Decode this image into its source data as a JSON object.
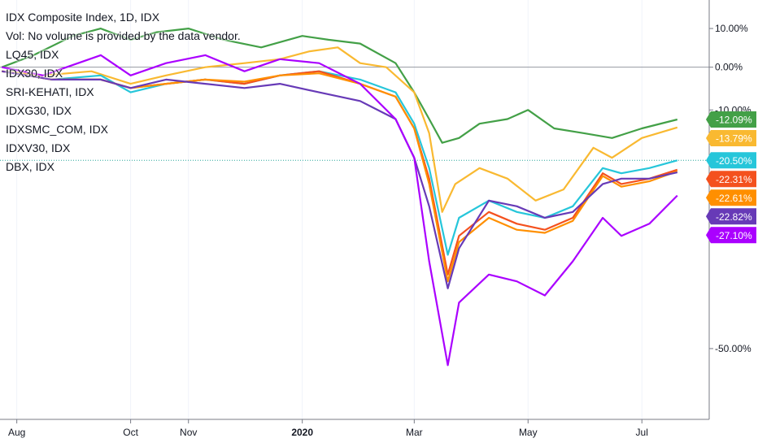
{
  "legend": {
    "title": "IDX Composite Index, 1D, IDX",
    "vol": "Vol: No volume is provided by the data vendor.",
    "items": [
      "LQ45, IDX",
      "IDX30, IDX",
      "SRI-KEHATI, IDX",
      "IDXG30, IDX",
      "IDXSMC_COM, IDX",
      "IDXV30, IDX",
      "DBX, IDX"
    ]
  },
  "chart_data": {
    "type": "line",
    "yscale": "log-percent",
    "ylim": [
      -58,
      18
    ],
    "y_ticks": [
      10,
      0,
      -10,
      -50
    ],
    "y_tick_labels": [
      "10.00%",
      "0.00%",
      "-10.00%",
      "-50.00%"
    ],
    "x_ticks": [
      "Aug",
      "Oct",
      "Nov",
      "2020",
      "Mar",
      "May",
      "Jul"
    ],
    "x_tick_dates": [
      "2019-08-01",
      "2019-10-01",
      "2019-11-01",
      "2020-01-01",
      "2020-03-01",
      "2020-05-01",
      "2020-07-01"
    ],
    "x_range": [
      "2019-07-23",
      "2020-07-24"
    ],
    "zero_line": true,
    "dotted_line_value": -20.5,
    "series": [
      {
        "color": "#43a047",
        "last": "-12.09%",
        "last_value": -12.09,
        "points": [
          [
            "2019-07-24",
            0
          ],
          [
            "2019-08-10",
            3
          ],
          [
            "2019-08-31",
            8
          ],
          [
            "2019-09-15",
            10
          ],
          [
            "2019-10-01",
            7
          ],
          [
            "2019-10-15",
            9
          ],
          [
            "2019-11-01",
            10
          ],
          [
            "2019-11-20",
            7
          ],
          [
            "2019-12-10",
            5
          ],
          [
            "2020-01-01",
            8
          ],
          [
            "2020-01-15",
            7
          ],
          [
            "2020-02-01",
            6
          ],
          [
            "2020-02-20",
            1
          ],
          [
            "2020-03-01",
            -6
          ],
          [
            "2020-03-09",
            -12
          ],
          [
            "2020-03-16",
            -17
          ],
          [
            "2020-03-25",
            -16
          ],
          [
            "2020-04-05",
            -13
          ],
          [
            "2020-04-20",
            -12
          ],
          [
            "2020-05-01",
            -10
          ],
          [
            "2020-05-15",
            -14
          ],
          [
            "2020-05-31",
            -15
          ],
          [
            "2020-06-15",
            -16
          ],
          [
            "2020-07-01",
            -14
          ],
          [
            "2020-07-20",
            -12.09
          ]
        ]
      },
      {
        "color": "#f9b931",
        "last": "-13.79%",
        "last_value": -13.79,
        "points": [
          [
            "2019-07-24",
            -1
          ],
          [
            "2019-08-15",
            -2
          ],
          [
            "2019-09-10",
            -1
          ],
          [
            "2019-10-01",
            -4
          ],
          [
            "2019-10-20",
            -2
          ],
          [
            "2019-11-10",
            0
          ],
          [
            "2019-12-01",
            1
          ],
          [
            "2019-12-20",
            2
          ],
          [
            "2020-01-05",
            4
          ],
          [
            "2020-01-20",
            5
          ],
          [
            "2020-02-01",
            1
          ],
          [
            "2020-02-15",
            0
          ],
          [
            "2020-03-01",
            -6
          ],
          [
            "2020-03-09",
            -15
          ],
          [
            "2020-03-16",
            -30
          ],
          [
            "2020-03-23",
            -25
          ],
          [
            "2020-04-05",
            -22
          ],
          [
            "2020-04-20",
            -24
          ],
          [
            "2020-05-05",
            -28
          ],
          [
            "2020-05-20",
            -26
          ],
          [
            "2020-06-05",
            -18
          ],
          [
            "2020-06-15",
            -20
          ],
          [
            "2020-07-01",
            -16
          ],
          [
            "2020-07-20",
            -13.79
          ]
        ]
      },
      {
        "color": "#26c6da",
        "last": "-20.50%",
        "last_value": -20.5,
        "points": [
          [
            "2019-07-24",
            -1
          ],
          [
            "2019-08-20",
            -3
          ],
          [
            "2019-09-15",
            -2
          ],
          [
            "2019-10-01",
            -6
          ],
          [
            "2019-10-20",
            -4
          ],
          [
            "2019-11-10",
            -3
          ],
          [
            "2019-12-01",
            -4
          ],
          [
            "2019-12-20",
            -2
          ],
          [
            "2020-01-10",
            -1
          ],
          [
            "2020-02-01",
            -3
          ],
          [
            "2020-02-20",
            -6
          ],
          [
            "2020-03-01",
            -13
          ],
          [
            "2020-03-09",
            -22
          ],
          [
            "2020-03-19",
            -37
          ],
          [
            "2020-03-25",
            -31
          ],
          [
            "2020-04-10",
            -28
          ],
          [
            "2020-04-25",
            -30
          ],
          [
            "2020-05-10",
            -31
          ],
          [
            "2020-05-25",
            -29
          ],
          [
            "2020-06-10",
            -22
          ],
          [
            "2020-06-20",
            -23
          ],
          [
            "2020-07-05",
            -22
          ],
          [
            "2020-07-20",
            -20.5
          ]
        ]
      },
      {
        "color": "#f4511e",
        "last": "-22.31%",
        "last_value": -22.31,
        "points": [
          [
            "2019-07-24",
            -1
          ],
          [
            "2019-08-20",
            -3
          ],
          [
            "2019-09-15",
            -3
          ],
          [
            "2019-10-01",
            -5
          ],
          [
            "2019-10-20",
            -4
          ],
          [
            "2019-11-10",
            -3
          ],
          [
            "2019-12-01",
            -4
          ],
          [
            "2019-12-20",
            -2
          ],
          [
            "2020-01-10",
            -1
          ],
          [
            "2020-02-01",
            -4
          ],
          [
            "2020-02-20",
            -7
          ],
          [
            "2020-03-01",
            -14
          ],
          [
            "2020-03-09",
            -24
          ],
          [
            "2020-03-19",
            -40
          ],
          [
            "2020-03-25",
            -34
          ],
          [
            "2020-04-10",
            -30
          ],
          [
            "2020-04-25",
            -32
          ],
          [
            "2020-05-10",
            -33
          ],
          [
            "2020-05-25",
            -31
          ],
          [
            "2020-06-10",
            -23
          ],
          [
            "2020-06-20",
            -25
          ],
          [
            "2020-07-05",
            -24
          ],
          [
            "2020-07-20",
            -22.31
          ]
        ]
      },
      {
        "color": "#ff8f00",
        "last": "-22.61%",
        "last_value": -22.61,
        "points": [
          [
            "2019-07-24",
            -1
          ],
          [
            "2019-08-20",
            -3
          ],
          [
            "2019-09-15",
            -3
          ],
          [
            "2019-10-01",
            -5
          ],
          [
            "2019-10-20",
            -4
          ],
          [
            "2019-11-10",
            -3
          ],
          [
            "2019-12-01",
            -3.5
          ],
          [
            "2019-12-20",
            -2
          ],
          [
            "2020-01-10",
            -1.5
          ],
          [
            "2020-02-01",
            -4
          ],
          [
            "2020-02-20",
            -7
          ],
          [
            "2020-03-01",
            -14
          ],
          [
            "2020-03-09",
            -25
          ],
          [
            "2020-03-19",
            -41
          ],
          [
            "2020-03-25",
            -35
          ],
          [
            "2020-04-10",
            -31
          ],
          [
            "2020-04-25",
            -33
          ],
          [
            "2020-05-10",
            -33.5
          ],
          [
            "2020-05-25",
            -31.5
          ],
          [
            "2020-06-10",
            -23.5
          ],
          [
            "2020-06-20",
            -25.5
          ],
          [
            "2020-07-05",
            -24.5
          ],
          [
            "2020-07-20",
            -22.61
          ]
        ]
      },
      {
        "color": "#673ab7",
        "last": "-22.82%",
        "last_value": -22.82,
        "points": [
          [
            "2019-07-24",
            -1
          ],
          [
            "2019-08-20",
            -3
          ],
          [
            "2019-09-15",
            -3
          ],
          [
            "2019-10-01",
            -5
          ],
          [
            "2019-10-20",
            -3
          ],
          [
            "2019-11-10",
            -4
          ],
          [
            "2019-12-01",
            -5
          ],
          [
            "2019-12-20",
            -4
          ],
          [
            "2020-01-10",
            -6
          ],
          [
            "2020-02-01",
            -8
          ],
          [
            "2020-02-20",
            -12
          ],
          [
            "2020-03-01",
            -20
          ],
          [
            "2020-03-09",
            -29
          ],
          [
            "2020-03-19",
            -42
          ],
          [
            "2020-03-25",
            -36
          ],
          [
            "2020-04-10",
            -28
          ],
          [
            "2020-04-25",
            -29
          ],
          [
            "2020-05-10",
            -31
          ],
          [
            "2020-05-25",
            -30
          ],
          [
            "2020-06-10",
            -25
          ],
          [
            "2020-06-20",
            -24
          ],
          [
            "2020-07-05",
            -24
          ],
          [
            "2020-07-20",
            -22.82
          ]
        ]
      },
      {
        "color": "#aa00ff",
        "last": "-27.10%",
        "last_value": -27.1,
        "points": [
          [
            "2019-07-24",
            0
          ],
          [
            "2019-08-15",
            -2
          ],
          [
            "2019-09-15",
            3
          ],
          [
            "2019-10-01",
            -2
          ],
          [
            "2019-10-20",
            1
          ],
          [
            "2019-11-10",
            3
          ],
          [
            "2019-12-01",
            -1
          ],
          [
            "2019-12-20",
            2
          ],
          [
            "2020-01-10",
            1
          ],
          [
            "2020-02-01",
            -4
          ],
          [
            "2020-02-20",
            -12
          ],
          [
            "2020-03-01",
            -20
          ],
          [
            "2020-03-09",
            -38
          ],
          [
            "2020-03-19",
            -52
          ],
          [
            "2020-03-25",
            -44
          ],
          [
            "2020-04-10",
            -40
          ],
          [
            "2020-04-25",
            -41
          ],
          [
            "2020-05-10",
            -43
          ],
          [
            "2020-05-25",
            -38
          ],
          [
            "2020-06-10",
            -31
          ],
          [
            "2020-06-20",
            -34
          ],
          [
            "2020-07-05",
            -32
          ],
          [
            "2020-07-20",
            -27.1
          ]
        ]
      }
    ]
  }
}
